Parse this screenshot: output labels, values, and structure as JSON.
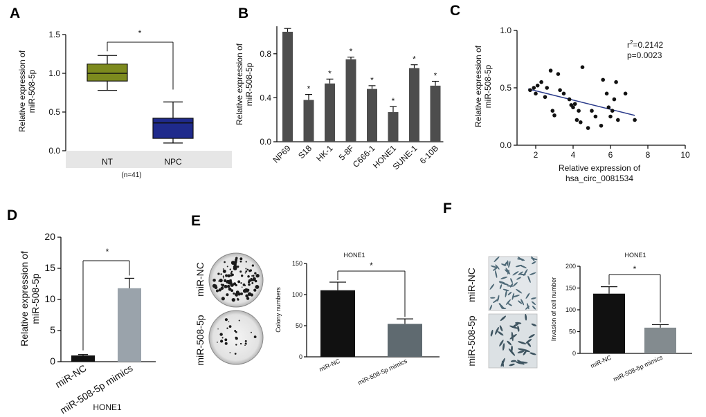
{
  "panels": {
    "A": {
      "letter": "A"
    },
    "B": {
      "letter": "B"
    },
    "C": {
      "letter": "C"
    },
    "D": {
      "letter": "D"
    },
    "E": {
      "letter": "E"
    },
    "F": {
      "letter": "F"
    }
  },
  "chart_data": [
    {
      "id": "A",
      "type": "box",
      "ylabel_line1": "Relative expression of",
      "ylabel_line2": "miR-508-5p",
      "ylim": [
        0,
        1.5
      ],
      "yticks": [
        "0.0",
        "0.5",
        "1.0",
        "1.5"
      ],
      "categories": [
        "NT",
        "NPC"
      ],
      "footnote": "(n=41)",
      "significance": "*",
      "boxes": [
        {
          "name": "NT",
          "min": 0.78,
          "q1": 0.9,
          "median": 1.0,
          "q3": 1.12,
          "max": 1.23,
          "color": "#7d8a1e"
        },
        {
          "name": "NPC",
          "min": 0.1,
          "q1": 0.16,
          "median": 0.36,
          "q3": 0.42,
          "max": 0.63,
          "color": "#1f2a8c"
        }
      ]
    },
    {
      "id": "B",
      "type": "bar",
      "ylabel_line1": "Relative expression of",
      "ylabel_line2": "miR-508-5p",
      "ylim": [
        0,
        1.05
      ],
      "yticks": [
        "0.0",
        "0.4",
        "0.8"
      ],
      "categories": [
        "NP69",
        "S18",
        "HK-1",
        "5-8F",
        "C666-1",
        "HONE1",
        "SUNE-1",
        "6-10B"
      ],
      "values": [
        1.0,
        0.38,
        0.53,
        0.75,
        0.48,
        0.27,
        0.67,
        0.51
      ],
      "errors": [
        0.03,
        0.05,
        0.04,
        0.02,
        0.03,
        0.05,
        0.03,
        0.04
      ],
      "stars": [
        "",
        "*",
        "*",
        "*",
        "*",
        "*",
        "*",
        "*"
      ],
      "color": "#4d4d4d"
    },
    {
      "id": "C",
      "type": "scatter",
      "xlabel_line1": "Relative expression of",
      "xlabel_line2": "hsa_circ_0081534",
      "ylabel_line1": "Relative expression of",
      "ylabel_line2": "miR-508-5p",
      "xlim": [
        1,
        10
      ],
      "ylim": [
        0,
        1.0
      ],
      "xticks": [
        "2",
        "4",
        "6",
        "8",
        "10"
      ],
      "yticks": [
        "0.0",
        "0.5",
        "1.0"
      ],
      "r2_prefix": "r",
      "r2_sup": "2",
      "r2_value": "=0.2142",
      "p_text": "p=0.0023",
      "fit_line": {
        "x1": 1.6,
        "y1": 0.49,
        "x2": 7.3,
        "y2": 0.26
      },
      "points": [
        [
          1.7,
          0.48
        ],
        [
          1.9,
          0.5
        ],
        [
          2.0,
          0.45
        ],
        [
          2.1,
          0.52
        ],
        [
          2.3,
          0.55
        ],
        [
          2.5,
          0.42
        ],
        [
          2.6,
          0.5
        ],
        [
          2.8,
          0.65
        ],
        [
          2.9,
          0.3
        ],
        [
          3.0,
          0.26
        ],
        [
          3.2,
          0.62
        ],
        [
          3.3,
          0.48
        ],
        [
          3.5,
          0.45
        ],
        [
          3.8,
          0.4
        ],
        [
          3.9,
          0.35
        ],
        [
          4.0,
          0.33
        ],
        [
          4.1,
          0.36
        ],
        [
          4.2,
          0.22
        ],
        [
          4.3,
          0.3
        ],
        [
          4.4,
          0.2
        ],
        [
          4.5,
          0.68
        ],
        [
          4.8,
          0.15
        ],
        [
          5.0,
          0.3
        ],
        [
          5.2,
          0.25
        ],
        [
          5.5,
          0.17
        ],
        [
          5.6,
          0.57
        ],
        [
          5.8,
          0.45
        ],
        [
          5.9,
          0.33
        ],
        [
          6.0,
          0.25
        ],
        [
          6.1,
          0.3
        ],
        [
          6.2,
          0.4
        ],
        [
          6.3,
          0.55
        ],
        [
          6.4,
          0.22
        ],
        [
          6.8,
          0.45
        ],
        [
          7.3,
          0.22
        ]
      ]
    },
    {
      "id": "D",
      "type": "bar",
      "ylabel_line1": "Relative expression of",
      "ylabel_line2": "miR-508-5p",
      "ylim": [
        0,
        20
      ],
      "yticks": [
        "0",
        "5",
        "10",
        "15",
        "20"
      ],
      "categories": [
        "miR-NC",
        "miR-508-5p mimics"
      ],
      "group_label": "HONE1",
      "values": [
        1.0,
        11.8
      ],
      "errors": [
        0.15,
        1.6
      ],
      "colors": [
        "#111111",
        "#9aa3ab"
      ],
      "significance": "*"
    },
    {
      "id": "E",
      "type": "bar",
      "title": "HONE1",
      "ylabel": "Colony numbers",
      "ylim": [
        0,
        150
      ],
      "yticks": [
        "0",
        "50",
        "100",
        "150"
      ],
      "categories": [
        "miR-NC",
        "miR-508-5p mimics"
      ],
      "values": [
        107,
        53
      ],
      "errors": [
        13,
        8
      ],
      "colors": [
        "#111111",
        "#5f6a70"
      ],
      "significance": "*",
      "image_labels": [
        "miR-NC",
        "miR-508-5p"
      ]
    },
    {
      "id": "F",
      "type": "bar",
      "title": "HONE1",
      "ylabel": "Invasion of cell number",
      "ylim": [
        0,
        200
      ],
      "yticks": [
        "0",
        "50",
        "100",
        "150",
        "200"
      ],
      "categories": [
        "miR-NC",
        "miR-508-5p mimics"
      ],
      "values": [
        137,
        59
      ],
      "errors": [
        16,
        7
      ],
      "colors": [
        "#111111",
        "#838b8f"
      ],
      "significance": "*",
      "image_labels": [
        "miR-NC",
        "miR-508-5p"
      ]
    }
  ]
}
